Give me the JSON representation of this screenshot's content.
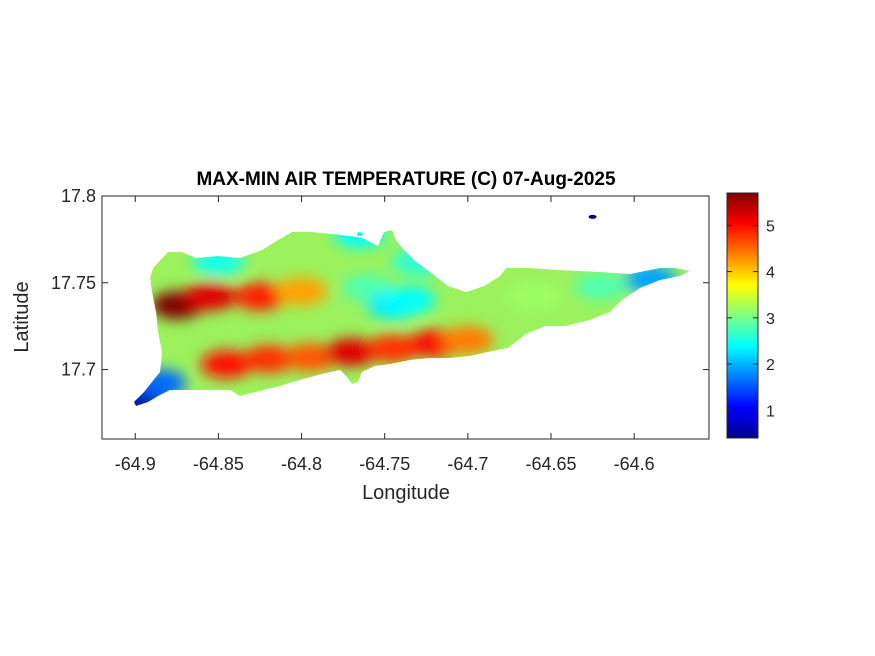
{
  "chart_data": {
    "type": "heatmap",
    "title": "MAX-MIN AIR TEMPERATURE (C) 07-Aug-2025",
    "xlabel": "Longitude",
    "ylabel": "Latitude",
    "xlim": [
      -64.92,
      -64.555
    ],
    "ylim": [
      17.66,
      17.8
    ],
    "xticks": [
      -64.9,
      -64.85,
      -64.8,
      -64.75,
      -64.7,
      -64.65,
      -64.6
    ],
    "xtick_labels": [
      "-64.9",
      "-64.85",
      "-64.8",
      "-64.75",
      "-64.7",
      "-64.65",
      "-64.6"
    ],
    "yticks": [
      17.7,
      17.75,
      17.8
    ],
    "ytick_labels": [
      "17.7",
      "17.75",
      "17.8"
    ],
    "colorbar": {
      "range": [
        0.4,
        5.7
      ],
      "ticks": [
        1,
        2,
        3,
        4,
        5
      ],
      "tick_labels": [
        "1",
        "2",
        "3",
        "4",
        "5"
      ],
      "colormap": "jet"
    },
    "hotspots": [
      {
        "lon": -64.875,
        "lat": 17.737,
        "value": 5.7
      },
      {
        "lon": -64.855,
        "lat": 17.742,
        "value": 5.2
      },
      {
        "lon": -64.825,
        "lat": 17.742,
        "value": 4.9
      },
      {
        "lon": -64.8,
        "lat": 17.745,
        "value": 4.2
      },
      {
        "lon": -64.845,
        "lat": 17.703,
        "value": 5.0
      },
      {
        "lon": -64.82,
        "lat": 17.706,
        "value": 4.8
      },
      {
        "lon": -64.795,
        "lat": 17.707,
        "value": 4.6
      },
      {
        "lon": -64.77,
        "lat": 17.71,
        "value": 5.2
      },
      {
        "lon": -64.745,
        "lat": 17.712,
        "value": 4.8
      },
      {
        "lon": -64.72,
        "lat": 17.715,
        "value": 5.0
      },
      {
        "lon": -64.7,
        "lat": 17.717,
        "value": 4.4
      },
      {
        "lon": -64.76,
        "lat": 17.747,
        "value": 2.8
      },
      {
        "lon": -64.745,
        "lat": 17.737,
        "value": 2.3
      },
      {
        "lon": -64.735,
        "lat": 17.74,
        "value": 2.4
      },
      {
        "lon": -64.85,
        "lat": 17.762,
        "value": 2.5
      },
      {
        "lon": -64.73,
        "lat": 17.762,
        "value": 2.6
      },
      {
        "lon": -64.66,
        "lat": 17.742,
        "value": 3.2
      },
      {
        "lon": -64.62,
        "lat": 17.748,
        "value": 2.8
      },
      {
        "lon": -64.59,
        "lat": 17.752,
        "value": 1.9
      },
      {
        "lon": -64.897,
        "lat": 17.682,
        "value": 0.6
      },
      {
        "lon": -64.885,
        "lat": 17.692,
        "value": 1.6
      },
      {
        "lon": -64.625,
        "lat": 17.788,
        "value": 0.4
      },
      {
        "lon": -64.765,
        "lat": 17.778,
        "value": 2.4
      }
    ]
  }
}
